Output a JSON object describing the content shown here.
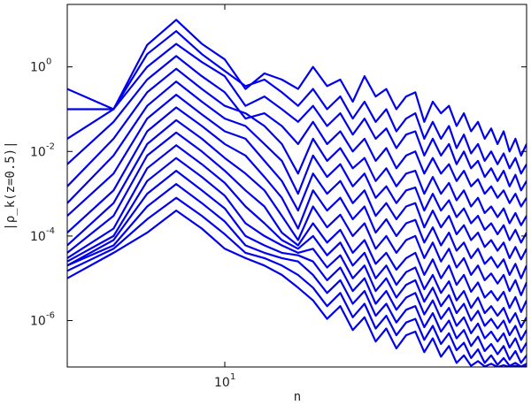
{
  "chart_data": {
    "type": "line",
    "title": "",
    "xlabel": "n",
    "ylabel": "|ρ_k(z=0.5)|",
    "xscale": "log",
    "yscale": "log",
    "xlim": [
      4.85,
      40
    ],
    "ylim": [
      8e-08,
      30
    ],
    "grid": false,
    "legend": "none",
    "line_color": "#0000ee",
    "x_ticks": [
      {
        "base": "10",
        "exp": "1",
        "value": 10
      }
    ],
    "y_ticks": [
      {
        "base": "10",
        "exp": "0",
        "value": 1
      },
      {
        "base": "10",
        "exp": "-2",
        "value": 0.01
      },
      {
        "base": "10",
        "exp": "-4",
        "value": 0.0001
      },
      {
        "base": "10",
        "exp": "-6",
        "value": 1e-06
      }
    ],
    "x": [
      4.85,
      6,
      7,
      8,
      9,
      10,
      11,
      12,
      13,
      14,
      15,
      16,
      17,
      18,
      19,
      20,
      21,
      22,
      23,
      24,
      25,
      26,
      27,
      28,
      29,
      30,
      31,
      32,
      33,
      34,
      35,
      36,
      37,
      38,
      39,
      40
    ],
    "series": [
      {
        "values": [
          0.3,
          0.1,
          3.3,
          13,
          3.5,
          1.5,
          0.3,
          0.7,
          0.5,
          0.3,
          1.0,
          0.35,
          0.5,
          0.15,
          0.6,
          0.2,
          0.3,
          0.1,
          0.2,
          0.25,
          0.05,
          0.15,
          0.08,
          0.12,
          0.04,
          0.08,
          0.03,
          0.05,
          0.02,
          0.035,
          0.015,
          0.03,
          0.01,
          0.02,
          0.008,
          0.015
        ]
      },
      {
        "values": [
          0.1,
          0.1,
          2.0,
          7.0,
          2.0,
          0.8,
          0.35,
          0.5,
          0.25,
          0.12,
          0.3,
          0.1,
          0.2,
          0.06,
          0.15,
          0.05,
          0.1,
          0.03,
          0.06,
          0.08,
          0.02,
          0.05,
          0.02,
          0.04,
          0.012,
          0.025,
          0.009,
          0.015,
          0.006,
          0.01,
          0.005,
          0.009,
          0.004,
          0.007,
          0.003,
          0.005
        ]
      },
      {
        "values": [
          0.02,
          0.1,
          1.0,
          3.5,
          1.3,
          0.6,
          0.12,
          0.2,
          0.1,
          0.05,
          0.12,
          0.04,
          0.08,
          0.025,
          0.06,
          0.02,
          0.035,
          0.012,
          0.025,
          0.03,
          0.008,
          0.02,
          0.008,
          0.015,
          0.005,
          0.01,
          0.004,
          0.006,
          0.0025,
          0.004,
          0.002,
          0.0035,
          0.0015,
          0.0028,
          0.0012,
          0.002
        ]
      },
      {
        "values": [
          0.005,
          0.05,
          0.5,
          1.8,
          0.6,
          0.25,
          0.06,
          0.08,
          0.04,
          0.015,
          0.05,
          0.015,
          0.03,
          0.01,
          0.02,
          0.006,
          0.012,
          0.004,
          0.008,
          0.01,
          0.003,
          0.007,
          0.003,
          0.005,
          0.002,
          0.0035,
          0.0015,
          0.0022,
          0.001,
          0.0015,
          0.0008,
          0.0012,
          0.0006,
          0.001,
          0.0005,
          0.0008
        ]
      },
      {
        "values": [
          0.0015,
          0.02,
          0.25,
          0.9,
          0.3,
          0.12,
          0.08,
          0.04,
          0.015,
          0.003,
          0.02,
          0.006,
          0.012,
          0.004,
          0.007,
          0.002,
          0.004,
          0.0015,
          0.003,
          0.0035,
          0.001,
          0.0025,
          0.001,
          0.0018,
          0.0007,
          0.0012,
          0.0005,
          0.0008,
          0.00035,
          0.0005,
          0.00028,
          0.00045,
          0.0002,
          0.00035,
          0.00018,
          0.0003
        ]
      },
      {
        "values": [
          0.0006,
          0.008,
          0.12,
          0.45,
          0.15,
          0.06,
          0.04,
          0.015,
          0.006,
          0.001,
          0.008,
          0.0025,
          0.005,
          0.0015,
          0.003,
          0.0008,
          0.0015,
          0.0006,
          0.0012,
          0.0014,
          0.0004,
          0.001,
          0.0004,
          0.0007,
          0.00028,
          0.00045,
          0.0002,
          0.0003,
          0.00014,
          0.0002,
          0.00011,
          0.00018,
          8e-05,
          0.00014,
          7e-05,
          0.00012
        ]
      },
      {
        "values": [
          0.0003,
          0.003,
          0.06,
          0.22,
          0.075,
          0.03,
          0.02,
          0.006,
          0.002,
          0.0004,
          0.003,
          0.001,
          0.002,
          0.0006,
          0.0012,
          0.0003,
          0.0006,
          0.00025,
          0.0005,
          0.0006,
          0.00016,
          0.0004,
          0.00016,
          0.0003,
          0.00011,
          0.00018,
          8e-05,
          0.00012,
          5.5e-05,
          8e-05,
          4.5e-05,
          7e-05,
          3e-05,
          5.5e-05,
          2.8e-05,
          5e-05
        ]
      },
      {
        "values": [
          0.00012,
          0.0012,
          0.03,
          0.11,
          0.04,
          0.015,
          0.008,
          0.0025,
          0.0008,
          0.00015,
          0.0012,
          0.0004,
          0.0008,
          0.00025,
          0.0005,
          0.00012,
          0.00025,
          0.0001,
          0.0002,
          0.00024,
          7e-05,
          0.00016,
          6e-05,
          0.00012,
          4.5e-05,
          7e-05,
          3e-05,
          5e-05,
          2.2e-05,
          3.2e-05,
          1.8e-05,
          2.8e-05,
          1.2e-05,
          2.2e-05,
          1e-05,
          2e-05
        ]
      },
      {
        "values": [
          6e-05,
          0.0006,
          0.015,
          0.055,
          0.02,
          0.007,
          0.003,
          0.0012,
          0.0003,
          8e-05,
          0.0005,
          0.00016,
          0.00032,
          0.0001,
          0.0002,
          5e-05,
          0.0001,
          4e-05,
          8e-05,
          0.0001,
          3e-05,
          7e-05,
          2.5e-05,
          5e-05,
          1.8e-05,
          3e-05,
          1.2e-05,
          2e-05,
          9e-06,
          1.3e-05,
          7.5e-06,
          1.2e-05,
          5e-06,
          9e-06,
          4e-06,
          8e-06
        ]
      },
      {
        "values": [
          4e-05,
          0.0003,
          0.008,
          0.028,
          0.01,
          0.0035,
          0.0012,
          0.0005,
          0.00012,
          6e-05,
          0.0002,
          7e-05,
          0.00014,
          4e-05,
          8e-05,
          2.2e-05,
          4e-05,
          1.6e-05,
          3e-05,
          4e-05,
          1.2e-05,
          2.8e-05,
          1e-05,
          2e-05,
          7e-06,
          1.2e-05,
          4.8e-06,
          8e-06,
          3.5e-06,
          5e-06,
          3e-06,
          4.8e-06,
          2e-06,
          3.6e-06,
          1.6e-06,
          3e-06
        ]
      },
      {
        "values": [
          3e-05,
          0.00015,
          0.004,
          0.014,
          0.005,
          0.0018,
          0.0005,
          0.0002,
          8e-05,
          5e-05,
          0.0001,
          3.5e-05,
          7e-05,
          2e-05,
          4e-05,
          1e-05,
          2e-05,
          7e-06,
          1.4e-05,
          1.8e-05,
          5.5e-06,
          1.2e-05,
          4.5e-06,
          8.5e-06,
          3e-06,
          5e-06,
          2e-06,
          3.5e-06,
          1.5e-06,
          2.2e-06,
          1.3e-06,
          2e-06,
          9e-07,
          1.5e-06,
          7e-07,
          1.2e-06
        ]
      },
      {
        "values": [
          2.5e-05,
          0.0001,
          0.002,
          0.007,
          0.0025,
          0.0009,
          0.0002,
          0.0001,
          6e-05,
          4e-05,
          5e-05,
          1.8e-05,
          3.5e-05,
          1e-05,
          2e-05,
          5e-06,
          1e-05,
          3.5e-06,
          7e-06,
          9e-06,
          2.8e-06,
          6e-06,
          2.2e-06,
          4e-06,
          1.5e-06,
          2.5e-06,
          1e-06,
          1.7e-06,
          7.5e-07,
          1.1e-06,
          6.5e-07,
          1e-06,
          4.5e-07,
          7.5e-07,
          3.5e-07,
          6e-07
        ]
      },
      {
        "values": [
          2e-05,
          8e-05,
          0.001,
          0.0035,
          0.0012,
          0.00045,
          0.0001,
          6e-05,
          4e-05,
          3.5e-05,
          2.5e-05,
          9e-06,
          1.8e-05,
          5e-06,
          1e-05,
          2.5e-06,
          5e-06,
          1.8e-06,
          3.5e-06,
          4.5e-06,
          1.4e-06,
          3e-06,
          1.1e-06,
          2e-06,
          7.5e-07,
          1.2e-06,
          5e-07,
          8.5e-07,
          3.8e-07,
          5.5e-07,
          3.2e-07,
          5e-07,
          2.3e-07,
          3.8e-07,
          1.8e-07,
          3e-07
        ]
      },
      {
        "values": [
          2e-05,
          6e-05,
          0.0005,
          0.0017,
          0.0006,
          0.00022,
          6e-05,
          4e-05,
          3e-05,
          2.5e-05,
          1.2e-05,
          4.5e-06,
          9e-06,
          2.5e-06,
          5e-06,
          1.3e-06,
          2.5e-06,
          9e-07,
          1.8e-06,
          2.2e-06,
          7e-07,
          1.5e-06,
          5.5e-07,
          1e-06,
          3.8e-07,
          6e-07,
          2.5e-07,
          4.2e-07,
          1.9e-07,
          2.8e-07,
          1.6e-07,
          2.5e-07,
          1.2e-07,
          1.9e-07,
          1e-07,
          1.5e-07
        ]
      },
      {
        "values": [
          1.5e-05,
          5e-05,
          0.00025,
          0.0008,
          0.0003,
          0.00011,
          4e-05,
          3e-05,
          2e-05,
          1.2e-05,
          6e-06,
          2.2e-06,
          4.5e-06,
          1.2e-06,
          2.5e-06,
          6.5e-07,
          1.3e-06,
          4.5e-07,
          9e-07,
          1.1e-06,
          3.5e-07,
          7.5e-07,
          2.8e-07,
          5e-07,
          2e-07,
          3e-07,
          1.3e-07,
          2.1e-07,
          1e-07,
          1.5e-07,
          9e-08,
          1.3e-07,
          8.5e-08,
          1e-07,
          8.2e-08,
          9.5e-08
        ]
      },
      {
        "values": [
          1e-05,
          4e-05,
          0.00012,
          0.0004,
          0.00015,
          5e-05,
          3e-05,
          2e-05,
          1.2e-05,
          6e-06,
          3e-06,
          1.1e-06,
          2.2e-06,
          6e-07,
          1.2e-06,
          3.2e-07,
          6.5e-07,
          2.2e-07,
          4.5e-07,
          5.5e-07,
          1.8e-07,
          3.8e-07,
          1.4e-07,
          2.5e-07,
          1e-07,
          1.5e-07,
          8.5e-08,
          1.1e-07,
          8.2e-08,
          9.5e-08,
          8e-08,
          8.8e-08,
          8e-08,
          8.5e-08,
          8e-08,
          8.3e-08
        ]
      }
    ]
  }
}
